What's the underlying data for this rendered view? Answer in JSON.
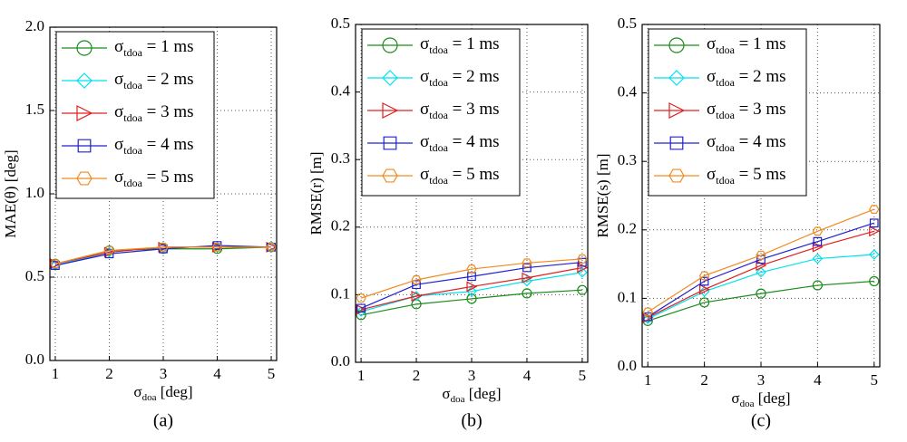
{
  "chart_data": [
    {
      "type": "line",
      "caption": "(a)",
      "ylabel": "MAE(θ) [deg]",
      "xlabel": [
        "σ",
        "doa",
        " [deg]"
      ],
      "x": [
        1,
        2,
        3,
        4,
        5
      ],
      "xlim": [
        0.9,
        5.1
      ],
      "xticks": [
        1,
        2,
        3,
        4,
        5
      ],
      "ylim": [
        0,
        2
      ],
      "yticks": [
        {
          "value": 0,
          "label": "0.0"
        },
        0.5,
        {
          "value": 1,
          "label": "1.0"
        },
        1.5,
        {
          "value": 2,
          "label": "2.0"
        }
      ],
      "grid": true,
      "series": [
        {
          "name": [
            "σ",
            "tdoa",
            " = 1 ms"
          ],
          "color": "#1a8c1a",
          "marker": "circle",
          "values": [
            0.58,
            0.66,
            0.67,
            0.67,
            0.68
          ]
        },
        {
          "name": [
            "σ",
            "tdoa",
            " = 2 ms"
          ],
          "color": "#00e0ee",
          "marker": "diamond",
          "values": [
            0.57,
            0.65,
            0.68,
            0.68,
            0.68
          ]
        },
        {
          "name": [
            "σ",
            "tdoa",
            " = 3 ms"
          ],
          "color": "#e02020",
          "marker": "triangle-right",
          "values": [
            0.58,
            0.65,
            0.68,
            0.68,
            0.68
          ]
        },
        {
          "name": [
            "σ",
            "tdoa",
            " = 4 ms"
          ],
          "color": "#2020d0",
          "marker": "square",
          "values": [
            0.57,
            0.64,
            0.67,
            0.69,
            0.68
          ]
        },
        {
          "name": [
            "σ",
            "tdoa",
            " = 5 ms"
          ],
          "color": "#f08a20",
          "marker": "hexagon",
          "values": [
            0.58,
            0.66,
            0.68,
            0.68,
            0.68
          ]
        }
      ]
    },
    {
      "type": "line",
      "caption": "(b)",
      "ylabel": "RMSE(r) [m]",
      "xlabel": [
        "σ",
        "doa",
        " [deg]"
      ],
      "x": [
        1,
        2,
        3,
        4,
        5
      ],
      "xlim": [
        0.9,
        5.1
      ],
      "xticks": [
        1,
        2,
        3,
        4,
        5
      ],
      "ylim": [
        0,
        0.5
      ],
      "yticks": [
        {
          "value": 0,
          "label": "0.0"
        },
        0.1,
        0.2,
        0.3,
        0.4,
        0.5
      ],
      "grid": true,
      "series": [
        {
          "name": [
            "σ",
            "tdoa",
            " = 1 ms"
          ],
          "color": "#1a8c1a",
          "marker": "circle",
          "values": [
            0.07,
            0.086,
            0.094,
            0.102,
            0.107
          ]
        },
        {
          "name": [
            "σ",
            "tdoa",
            " = 2 ms"
          ],
          "color": "#00e0ee",
          "marker": "diamond",
          "values": [
            0.075,
            0.098,
            0.105,
            0.12,
            0.133
          ]
        },
        {
          "name": [
            "σ",
            "tdoa",
            " = 3 ms"
          ],
          "color": "#e02020",
          "marker": "triangle-right",
          "values": [
            0.078,
            0.098,
            0.112,
            0.125,
            0.14
          ]
        },
        {
          "name": [
            "σ",
            "tdoa",
            " = 4 ms"
          ],
          "color": "#2020d0",
          "marker": "square",
          "values": [
            0.08,
            0.115,
            0.127,
            0.14,
            0.148
          ]
        },
        {
          "name": [
            "σ",
            "tdoa",
            " = 5 ms"
          ],
          "color": "#f08a20",
          "marker": "hexagon",
          "values": [
            0.095,
            0.122,
            0.138,
            0.147,
            0.153
          ]
        }
      ]
    },
    {
      "type": "line",
      "caption": "(c)",
      "ylabel": "RMSE(s) [m]",
      "xlabel": [
        "σ",
        "doa",
        " [deg]"
      ],
      "x": [
        1,
        2,
        3,
        4,
        5
      ],
      "xlim": [
        0.9,
        5.1
      ],
      "xticks": [
        1,
        2,
        3,
        4,
        5
      ],
      "ylim": [
        0,
        0.5
      ],
      "yticks": [
        {
          "value": 0,
          "label": "0.0"
        },
        0.1,
        0.2,
        0.3,
        0.4,
        0.5
      ],
      "grid": true,
      "series": [
        {
          "name": [
            "σ",
            "tdoa",
            " = 1 ms"
          ],
          "color": "#1a8c1a",
          "marker": "circle",
          "values": [
            0.067,
            0.094,
            0.107,
            0.119,
            0.125
          ]
        },
        {
          "name": [
            "σ",
            "tdoa",
            " = 2 ms"
          ],
          "color": "#00e0ee",
          "marker": "diamond",
          "values": [
            0.07,
            0.11,
            0.138,
            0.158,
            0.164
          ]
        },
        {
          "name": [
            "σ",
            "tdoa",
            " = 3 ms"
          ],
          "color": "#e02020",
          "marker": "triangle-right",
          "values": [
            0.072,
            0.113,
            0.148,
            0.175,
            0.198
          ]
        },
        {
          "name": [
            "σ",
            "tdoa",
            " = 4 ms"
          ],
          "color": "#2020d0",
          "marker": "square",
          "values": [
            0.073,
            0.125,
            0.157,
            0.183,
            0.21
          ]
        },
        {
          "name": [
            "σ",
            "tdoa",
            " = 5 ms"
          ],
          "color": "#f08a20",
          "marker": "hexagon",
          "values": [
            0.08,
            0.133,
            0.163,
            0.198,
            0.23
          ]
        }
      ]
    }
  ]
}
